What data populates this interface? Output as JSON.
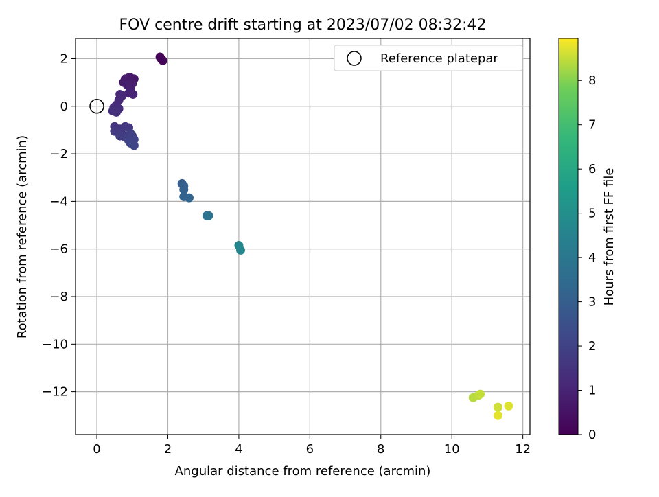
{
  "chart_data": {
    "type": "scatter",
    "title": "FOV centre drift starting at 2023/07/02 08:32:42",
    "xlabel": "Angular distance from reference (arcmin)",
    "ylabel": "Rotation from reference (arcmin)",
    "xlim": [
      -0.6,
      12.2
    ],
    "ylim": [
      -13.8,
      2.85
    ],
    "xticks": [
      0,
      2,
      4,
      6,
      8,
      10,
      12
    ],
    "yticks": [
      2,
      0,
      -2,
      -4,
      -6,
      -8,
      -10,
      -12
    ],
    "xtick_labels": [
      "0",
      "2",
      "4",
      "6",
      "8",
      "10",
      "12"
    ],
    "ytick_labels": [
      "2",
      "0",
      "−2",
      "−4",
      "−6",
      "−8",
      "−10",
      "−12"
    ],
    "grid": true,
    "legend": {
      "position": "upper right",
      "entries": [
        {
          "label": "Reference platepar",
          "marker": "open-circle",
          "color": "#000000"
        }
      ]
    },
    "reference_point": {
      "x": 0,
      "y": 0
    },
    "colorbar": {
      "label": "Hours from first FF file",
      "colormap": "viridis",
      "range": [
        0,
        8.95
      ],
      "ticks": [
        0,
        1,
        2,
        3,
        4,
        5,
        6,
        7,
        8
      ],
      "tick_labels": [
        "0",
        "1",
        "2",
        "3",
        "4",
        "5",
        "6",
        "7",
        "8"
      ]
    },
    "points": [
      {
        "x": 1.78,
        "y": 2.07,
        "t": 0.05
      },
      {
        "x": 1.82,
        "y": 1.98,
        "t": 0.08
      },
      {
        "x": 1.86,
        "y": 1.92,
        "t": 0.1
      },
      {
        "x": 0.95,
        "y": 1.2,
        "t": 0.55
      },
      {
        "x": 1.05,
        "y": 1.15,
        "t": 0.6
      },
      {
        "x": 0.8,
        "y": 1.15,
        "t": 0.65
      },
      {
        "x": 0.9,
        "y": 1.2,
        "t": 0.7
      },
      {
        "x": 0.75,
        "y": 1.0,
        "t": 0.75
      },
      {
        "x": 1.0,
        "y": 0.95,
        "t": 0.8
      },
      {
        "x": 0.85,
        "y": 0.9,
        "t": 0.85
      },
      {
        "x": 0.95,
        "y": 0.7,
        "t": 0.9
      },
      {
        "x": 0.9,
        "y": 0.55,
        "t": 0.95
      },
      {
        "x": 1.02,
        "y": 0.5,
        "t": 1.0
      },
      {
        "x": 0.65,
        "y": 0.5,
        "t": 1.05
      },
      {
        "x": 0.72,
        "y": 0.45,
        "t": 1.1
      },
      {
        "x": 0.62,
        "y": 0.25,
        "t": 1.15
      },
      {
        "x": 0.55,
        "y": 0.05,
        "t": 1.2
      },
      {
        "x": 0.48,
        "y": -0.05,
        "t": 1.25
      },
      {
        "x": 0.62,
        "y": -0.1,
        "t": 1.3
      },
      {
        "x": 0.45,
        "y": -0.2,
        "t": 1.35
      },
      {
        "x": 0.55,
        "y": -0.25,
        "t": 1.4
      },
      {
        "x": 0.5,
        "y": -0.85,
        "t": 1.5
      },
      {
        "x": 0.65,
        "y": -0.95,
        "t": 1.55
      },
      {
        "x": 0.8,
        "y": -0.85,
        "t": 1.6
      },
      {
        "x": 0.9,
        "y": -0.9,
        "t": 1.65
      },
      {
        "x": 0.5,
        "y": -1.05,
        "t": 1.7
      },
      {
        "x": 0.7,
        "y": -1.15,
        "t": 1.75
      },
      {
        "x": 0.65,
        "y": -1.25,
        "t": 1.8
      },
      {
        "x": 0.8,
        "y": -1.3,
        "t": 1.85
      },
      {
        "x": 0.95,
        "y": -1.15,
        "t": 1.9
      },
      {
        "x": 1.0,
        "y": -1.25,
        "t": 1.95
      },
      {
        "x": 0.9,
        "y": -1.45,
        "t": 2.0
      },
      {
        "x": 1.05,
        "y": -1.4,
        "t": 2.05
      },
      {
        "x": 0.95,
        "y": -1.55,
        "t": 2.1
      },
      {
        "x": 1.05,
        "y": -1.65,
        "t": 2.15
      },
      {
        "x": 2.4,
        "y": -3.25,
        "t": 3.0
      },
      {
        "x": 2.45,
        "y": -3.35,
        "t": 3.05
      },
      {
        "x": 2.45,
        "y": -3.5,
        "t": 3.1
      },
      {
        "x": 2.45,
        "y": -3.8,
        "t": 3.15
      },
      {
        "x": 2.6,
        "y": -3.85,
        "t": 3.2
      },
      {
        "x": 3.1,
        "y": -4.6,
        "t": 3.8
      },
      {
        "x": 3.15,
        "y": -4.6,
        "t": 3.85
      },
      {
        "x": 4.0,
        "y": -5.85,
        "t": 4.6
      },
      {
        "x": 4.05,
        "y": -6.05,
        "t": 4.65
      },
      {
        "x": 10.6,
        "y": -12.25,
        "t": 8.4
      },
      {
        "x": 10.75,
        "y": -12.15,
        "t": 8.45
      },
      {
        "x": 10.8,
        "y": -12.1,
        "t": 8.5
      },
      {
        "x": 11.3,
        "y": -12.65,
        "t": 8.6
      },
      {
        "x": 11.6,
        "y": -12.6,
        "t": 8.7
      },
      {
        "x": 11.3,
        "y": -13.0,
        "t": 8.75
      }
    ]
  }
}
